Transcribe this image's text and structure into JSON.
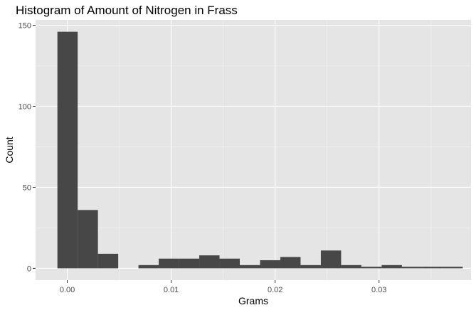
{
  "chart_data": {
    "type": "bar",
    "title": "Histogram of Amount of Nitrogen in Frass",
    "xlabel": "Grams",
    "ylabel": "Count",
    "xlim": [
      -0.00305,
      0.03885
    ],
    "ylim": [
      -7.3,
      153.3
    ],
    "x_ticks": [
      {
        "value": 0.0,
        "label": "0.00"
      },
      {
        "value": 0.01,
        "label": "0.01"
      },
      {
        "value": 0.02,
        "label": "0.02"
      },
      {
        "value": 0.03,
        "label": "0.03"
      }
    ],
    "y_ticks": [
      {
        "value": 0,
        "label": "0"
      },
      {
        "value": 50,
        "label": "50"
      },
      {
        "value": 100,
        "label": "100"
      },
      {
        "value": 150,
        "label": "150"
      }
    ],
    "bin_width": 0.00195,
    "bins": [
      {
        "x0": -0.00095,
        "x1": 0.001,
        "count": 146
      },
      {
        "x0": 0.001,
        "x1": 0.00295,
        "count": 36
      },
      {
        "x0": 0.00295,
        "x1": 0.0049,
        "count": 9
      },
      {
        "x0": 0.0049,
        "x1": 0.00685,
        "count": 0
      },
      {
        "x0": 0.00685,
        "x1": 0.0088,
        "count": 2
      },
      {
        "x0": 0.0088,
        "x1": 0.01075,
        "count": 6
      },
      {
        "x0": 0.01075,
        "x1": 0.0127,
        "count": 6
      },
      {
        "x0": 0.0127,
        "x1": 0.01465,
        "count": 8
      },
      {
        "x0": 0.01465,
        "x1": 0.0166,
        "count": 6
      },
      {
        "x0": 0.0166,
        "x1": 0.01855,
        "count": 2
      },
      {
        "x0": 0.01855,
        "x1": 0.0205,
        "count": 5
      },
      {
        "x0": 0.0205,
        "x1": 0.02245,
        "count": 7
      },
      {
        "x0": 0.02245,
        "x1": 0.0244,
        "count": 2
      },
      {
        "x0": 0.0244,
        "x1": 0.02635,
        "count": 11
      },
      {
        "x0": 0.02635,
        "x1": 0.0283,
        "count": 2
      },
      {
        "x0": 0.0283,
        "x1": 0.03025,
        "count": 1
      },
      {
        "x0": 0.03025,
        "x1": 0.0322,
        "count": 2
      },
      {
        "x0": 0.0322,
        "x1": 0.03415,
        "count": 1
      },
      {
        "x0": 0.03415,
        "x1": 0.0361,
        "count": 1
      },
      {
        "x0": 0.0361,
        "x1": 0.03805,
        "count": 1
      }
    ],
    "grid": true,
    "legend": "none",
    "colors": {
      "bar_fill": "#474747",
      "panel_background": "#e5e5e5",
      "grid_major": "#ffffff",
      "grid_minor": "#f2f2f2"
    }
  }
}
